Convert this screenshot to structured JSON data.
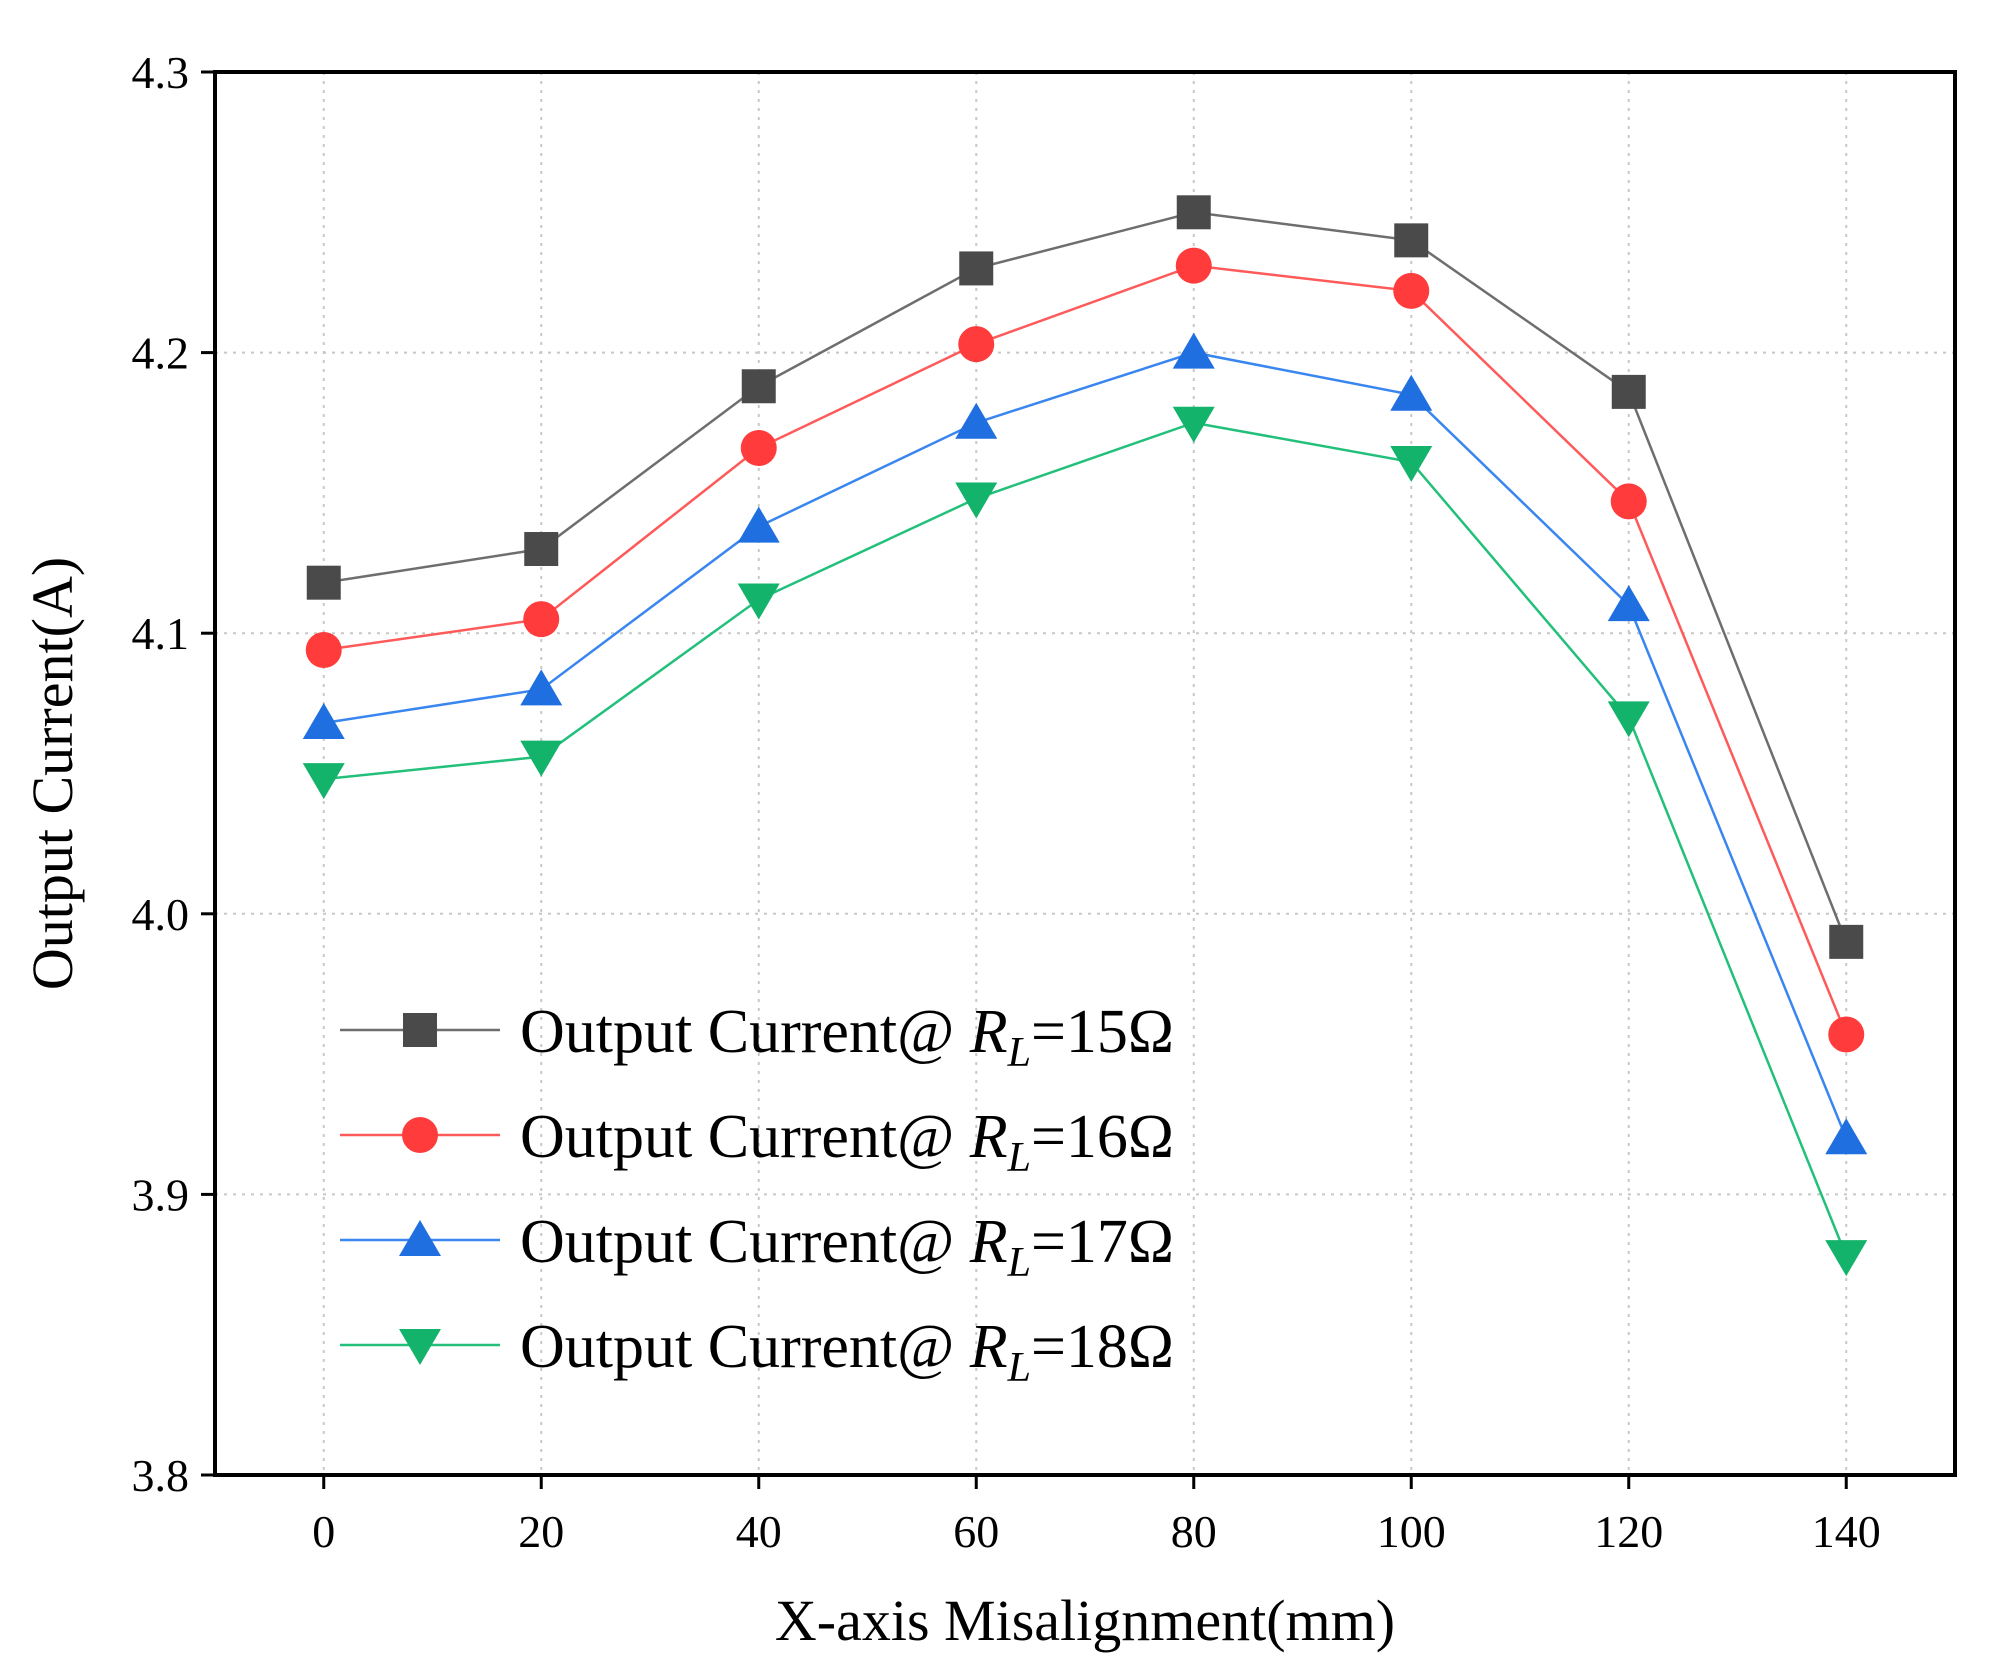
{
  "chart_data": {
    "type": "line",
    "title": "",
    "xlabel": "X-axis Misalignment(mm)",
    "ylabel": "Output Current(A)",
    "x": [
      0,
      20,
      40,
      60,
      80,
      100,
      120,
      140
    ],
    "x_tick_labels": [
      "0",
      "20",
      "40",
      "60",
      "80",
      "100",
      "120",
      "140"
    ],
    "y_tick_values": [
      3.8,
      3.9,
      4.0,
      4.1,
      4.2,
      4.3
    ],
    "y_tick_labels": [
      "3.8",
      "3.9",
      "4.0",
      "4.1",
      "4.2",
      "4.3"
    ],
    "xlim": [
      -10,
      150
    ],
    "ylim": [
      3.8,
      4.3
    ],
    "grid": true,
    "legend_position": "bottom-left",
    "series": [
      {
        "name": "Output Current@ RL=15Ω",
        "legend_prefix": "Output Current@ ",
        "legend_var": "R",
        "legend_sub": "L",
        "legend_suffix": "=15Ω",
        "marker": "square",
        "color": "#4a4a4a",
        "line_color": "#6e6e6e",
        "values": [
          4.118,
          4.13,
          4.188,
          4.23,
          4.25,
          4.24,
          4.186,
          3.99
        ]
      },
      {
        "name": "Output Current@ RL=16Ω",
        "legend_prefix": "Output Current@ ",
        "legend_var": "R",
        "legend_sub": "L",
        "legend_suffix": "=16Ω",
        "marker": "circle",
        "color": "#ff3b3b",
        "line_color": "#ff5a5a",
        "values": [
          4.094,
          4.105,
          4.166,
          4.203,
          4.231,
          4.222,
          4.147,
          3.957
        ]
      },
      {
        "name": "Output Current@ RL=17Ω",
        "legend_prefix": "Output Current@ ",
        "legend_var": "R",
        "legend_sub": "L",
        "legend_suffix": "=17Ω",
        "marker": "triangle-up",
        "color": "#1f6fe0",
        "line_color": "#3a86f0",
        "values": [
          4.068,
          4.08,
          4.138,
          4.175,
          4.2,
          4.185,
          4.11,
          3.92
        ]
      },
      {
        "name": "Output Current@ RL=18Ω",
        "legend_prefix": "Output Current@ ",
        "legend_var": "R",
        "legend_sub": "L",
        "legend_suffix": "=18Ω",
        "marker": "triangle-down",
        "color": "#14b36b",
        "line_color": "#22c07a",
        "values": [
          4.048,
          4.056,
          4.112,
          4.148,
          4.175,
          4.161,
          4.07,
          3.878
        ]
      }
    ]
  }
}
